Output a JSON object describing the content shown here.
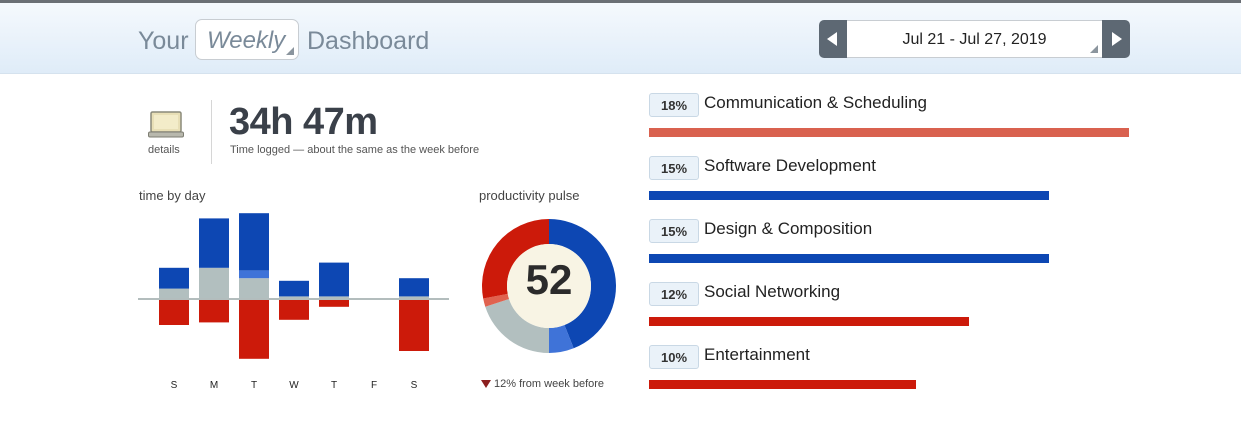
{
  "header": {
    "title_prefix": "Your",
    "period": "Weekly",
    "title_suffix": "Dashboard",
    "date_range": "Jul 21 - Jul 27, 2019"
  },
  "summary": {
    "details_label": "details",
    "total_time": "34h 47m",
    "caption": "Time logged — about the same as the week before"
  },
  "time_by_day": {
    "label": "time by day",
    "days": [
      "S",
      "M",
      "T",
      "W",
      "T",
      "F",
      "S"
    ]
  },
  "pulse": {
    "label": "productivity pulse",
    "value": "52",
    "change": "12% from week before"
  },
  "categories": [
    {
      "percent": "18%",
      "name": "Communication & Scheduling",
      "fraction": 0.18,
      "color": "#d9614f"
    },
    {
      "percent": "15%",
      "name": "Software Development",
      "fraction": 0.15,
      "color": "#0d47b3"
    },
    {
      "percent": "15%",
      "name": "Design & Composition",
      "fraction": 0.15,
      "color": "#0d47b3"
    },
    {
      "percent": "12%",
      "name": "Social Networking",
      "fraction": 0.12,
      "color": "#cc1a0a"
    },
    {
      "percent": "10%",
      "name": "Entertainment",
      "fraction": 0.1,
      "color": "#cc1a0a"
    }
  ],
  "chart_data": [
    {
      "type": "bar",
      "categories": [
        "S",
        "M",
        "T",
        "W",
        "T",
        "F",
        "S"
      ],
      "series": [
        {
          "values": [
            0.8,
            1.9,
            2.2,
            0.6,
            1.3,
            0,
            0.7
          ]
        },
        {
          "values": [
            0,
            0,
            0.3,
            0,
            0,
            0,
            0
          ]
        },
        {
          "values": [
            0.4,
            1.2,
            0.8,
            0.1,
            0.1,
            0,
            0.1
          ]
        },
        {
          "values": [
            -1.0,
            -0.9,
            -2.3,
            -0.8,
            -0.3,
            0,
            -2.0
          ]
        }
      ],
      "colors": [
        "#0d47b3",
        "#3f73d8",
        "#b2bfbf",
        "#cc1a0a"
      ]
    },
    {
      "type": "pie",
      "values": [
        44,
        6,
        20,
        2,
        28
      ],
      "colors": [
        "#0d47b3",
        "#3f73d8",
        "#b2bfbf",
        "#e0624f",
        "#cc1a0a"
      ],
      "center_value": "52"
    }
  ]
}
